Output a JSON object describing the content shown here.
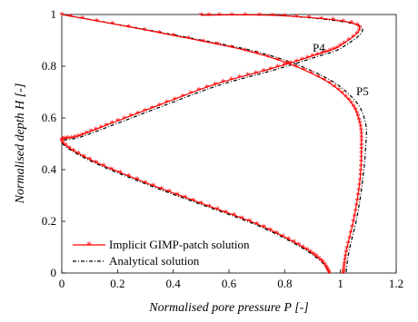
{
  "chart_data": {
    "type": "line",
    "xlabel": "Normalised pore pressure P [-]",
    "ylabel": "Normalised depth H [-]",
    "xlim": [
      0,
      1.2
    ],
    "ylim": [
      0,
      1
    ],
    "x_ticks": [
      "0",
      "0.2",
      "0.4",
      "0.6",
      "0.8",
      "1",
      "1.2"
    ],
    "y_ticks": [
      "0",
      "0.2",
      "0.4",
      "0.6",
      "0.8",
      "1"
    ],
    "grid": false,
    "legend_position": "bottom-left",
    "legend": [
      {
        "label": "Implicit GIMP-patch solution",
        "style": "red line with asterisk markers",
        "color": "#ff0000"
      },
      {
        "label": "Analytical solution",
        "style": "black dash-dot line",
        "color": "#000000"
      }
    ],
    "annotations": [
      "P4",
      "P5"
    ],
    "series": [
      {
        "name": "Implicit GIMP-patch solution",
        "curve": "P4",
        "x": [
          0.5,
          0.8,
          1.06,
          1.0,
          0.9,
          0.75,
          0.55,
          0.35,
          0.18,
          0.06,
          0.0,
          0.1,
          0.3,
          0.5,
          0.7,
          0.85,
          0.93,
          0.96
        ],
        "y": [
          0.998,
          0.995,
          0.96,
          0.88,
          0.84,
          0.79,
          0.73,
          0.65,
          0.58,
          0.53,
          0.51,
          0.44,
          0.35,
          0.27,
          0.19,
          0.11,
          0.05,
          0.0
        ]
      },
      {
        "name": "Implicit GIMP-patch solution",
        "curve": "P5",
        "x": [
          0.0,
          0.35,
          0.7,
          0.92,
          1.03,
          1.07,
          1.075,
          1.07,
          1.05,
          1.02,
          1.01
        ],
        "y": [
          1.0,
          0.93,
          0.85,
          0.76,
          0.67,
          0.58,
          0.48,
          0.36,
          0.22,
          0.08,
          0.0
        ]
      },
      {
        "name": "Analytical solution",
        "curve": "P4",
        "x": [
          0.5,
          0.8,
          1.07,
          1.01,
          0.91,
          0.76,
          0.56,
          0.36,
          0.19,
          0.065,
          0.0,
          0.1,
          0.3,
          0.5,
          0.7,
          0.85,
          0.93,
          0.96
        ],
        "y": [
          0.998,
          0.995,
          0.955,
          0.875,
          0.835,
          0.785,
          0.725,
          0.645,
          0.575,
          0.525,
          0.505,
          0.435,
          0.345,
          0.265,
          0.185,
          0.105,
          0.045,
          0.0
        ]
      },
      {
        "name": "Analytical solution",
        "curve": "P5",
        "x": [
          0.0,
          0.36,
          0.72,
          0.94,
          1.05,
          1.09,
          1.09,
          1.08,
          1.06,
          1.03,
          1.02
        ],
        "y": [
          1.0,
          0.93,
          0.85,
          0.76,
          0.67,
          0.58,
          0.48,
          0.36,
          0.22,
          0.08,
          0.0
        ]
      }
    ]
  }
}
